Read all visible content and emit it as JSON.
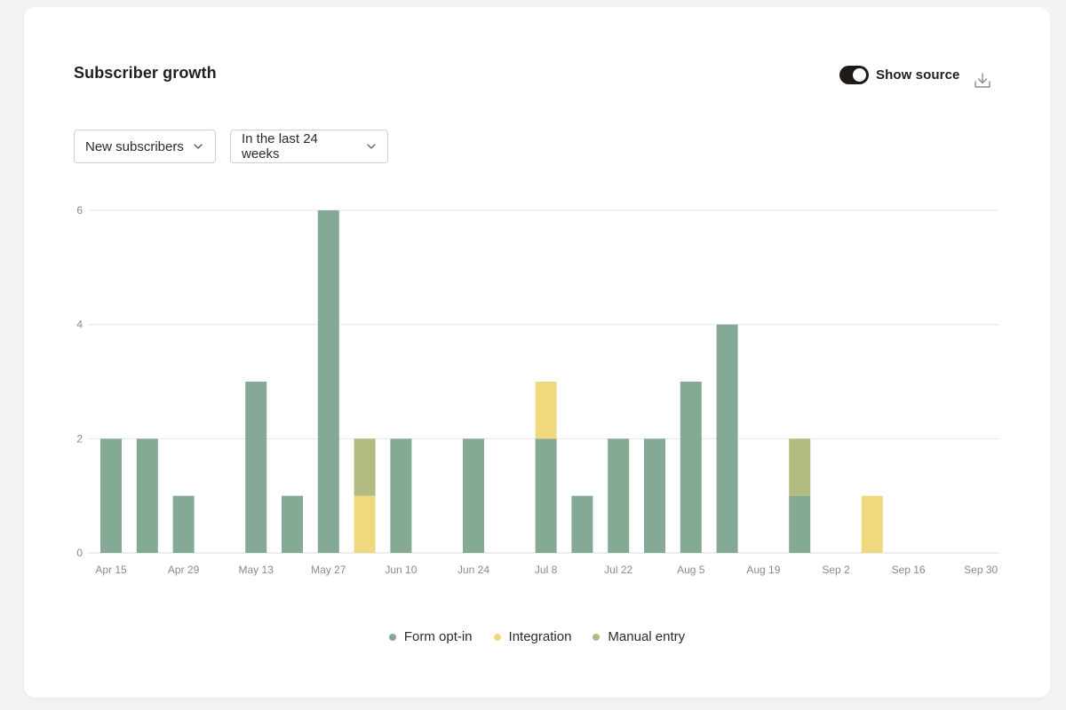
{
  "header": {
    "title": "Subscriber growth",
    "toggle_label": "Show source",
    "toggle_on": true
  },
  "filters": {
    "metric": "New subscribers",
    "range": "In the last 24 weeks"
  },
  "icons": {
    "download": "download-icon",
    "chevron": "chevron-down-icon"
  },
  "colors": {
    "Form opt-in": "#84aa96",
    "Integration": "#f0d87e",
    "Manual entry": "#b2bb80",
    "toggle": "#1f1a17",
    "grid": "#e6e6e6",
    "tick_text": "#8a8a8a"
  },
  "chart_data": {
    "type": "bar",
    "stacked": true,
    "ylim": [
      0,
      6
    ],
    "yticks": [
      0,
      2,
      4,
      6
    ],
    "grid": true,
    "legend_position": "bottom-center",
    "x_tick_labels": [
      "Apr 15",
      "Apr 29",
      "May 13",
      "May 27",
      "Jun 10",
      "Jun 24",
      "Jul 8",
      "Jul 22",
      "Aug 5",
      "Aug 19",
      "Sep 2",
      "Sep 16",
      "Sep 30"
    ],
    "categories": [
      "Apr 15",
      "Apr 22",
      "Apr 29",
      "May 6",
      "May 13",
      "May 20",
      "May 27",
      "Jun 3",
      "Jun 10",
      "Jun 17",
      "Jun 24",
      "Jul 1",
      "Jul 8",
      "Jul 15",
      "Jul 22",
      "Jul 29",
      "Aug 5",
      "Aug 12",
      "Aug 19",
      "Aug 26",
      "Sep 2",
      "Sep 9",
      "Sep 16",
      "Sep 23",
      "Sep 30"
    ],
    "series": [
      {
        "name": "Form opt-in",
        "values": [
          2,
          2,
          1,
          0,
          3,
          1,
          6,
          0,
          2,
          0,
          2,
          0,
          2,
          1,
          2,
          2,
          3,
          4,
          0,
          1,
          0,
          0,
          0,
          0,
          0
        ]
      },
      {
        "name": "Integration",
        "values": [
          0,
          0,
          0,
          0,
          0,
          0,
          0,
          1,
          0,
          0,
          0,
          0,
          1,
          0,
          0,
          0,
          0,
          0,
          0,
          0,
          0,
          1,
          0,
          0,
          0
        ]
      },
      {
        "name": "Manual entry",
        "values": [
          0,
          0,
          0,
          0,
          0,
          0,
          0,
          1,
          0,
          0,
          0,
          0,
          0,
          0,
          0,
          0,
          0,
          0,
          0,
          1,
          0,
          0,
          0,
          0,
          0
        ]
      }
    ]
  }
}
